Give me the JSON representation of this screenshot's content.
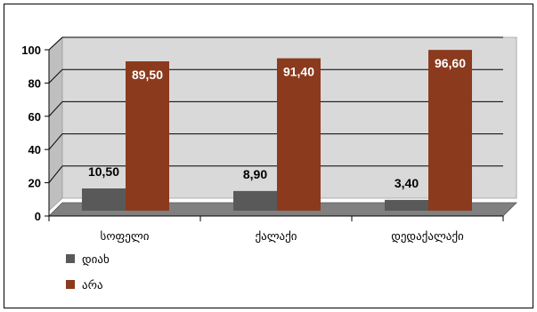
{
  "chart_data": {
    "type": "bar",
    "categories": [
      "სოფელი",
      "ქალაქი",
      "დედაქალაქი"
    ],
    "series": [
      {
        "name": "დიახ",
        "values": [
          10.5,
          8.9,
          3.4
        ],
        "labels": [
          "10,50",
          "8,90",
          "3,40"
        ],
        "color": "#595959",
        "label_color": "#000000"
      },
      {
        "name": "არა",
        "values": [
          89.5,
          91.4,
          96.6
        ],
        "labels": [
          "89,50",
          "91,40",
          "96,60"
        ],
        "color": "#8b3a1e",
        "label_color": "#ffffff"
      }
    ],
    "ylim": [
      0,
      100
    ],
    "yticks": [
      0,
      20,
      40,
      60,
      80,
      100
    ],
    "grid": true,
    "legend_position": "bottom-left"
  }
}
